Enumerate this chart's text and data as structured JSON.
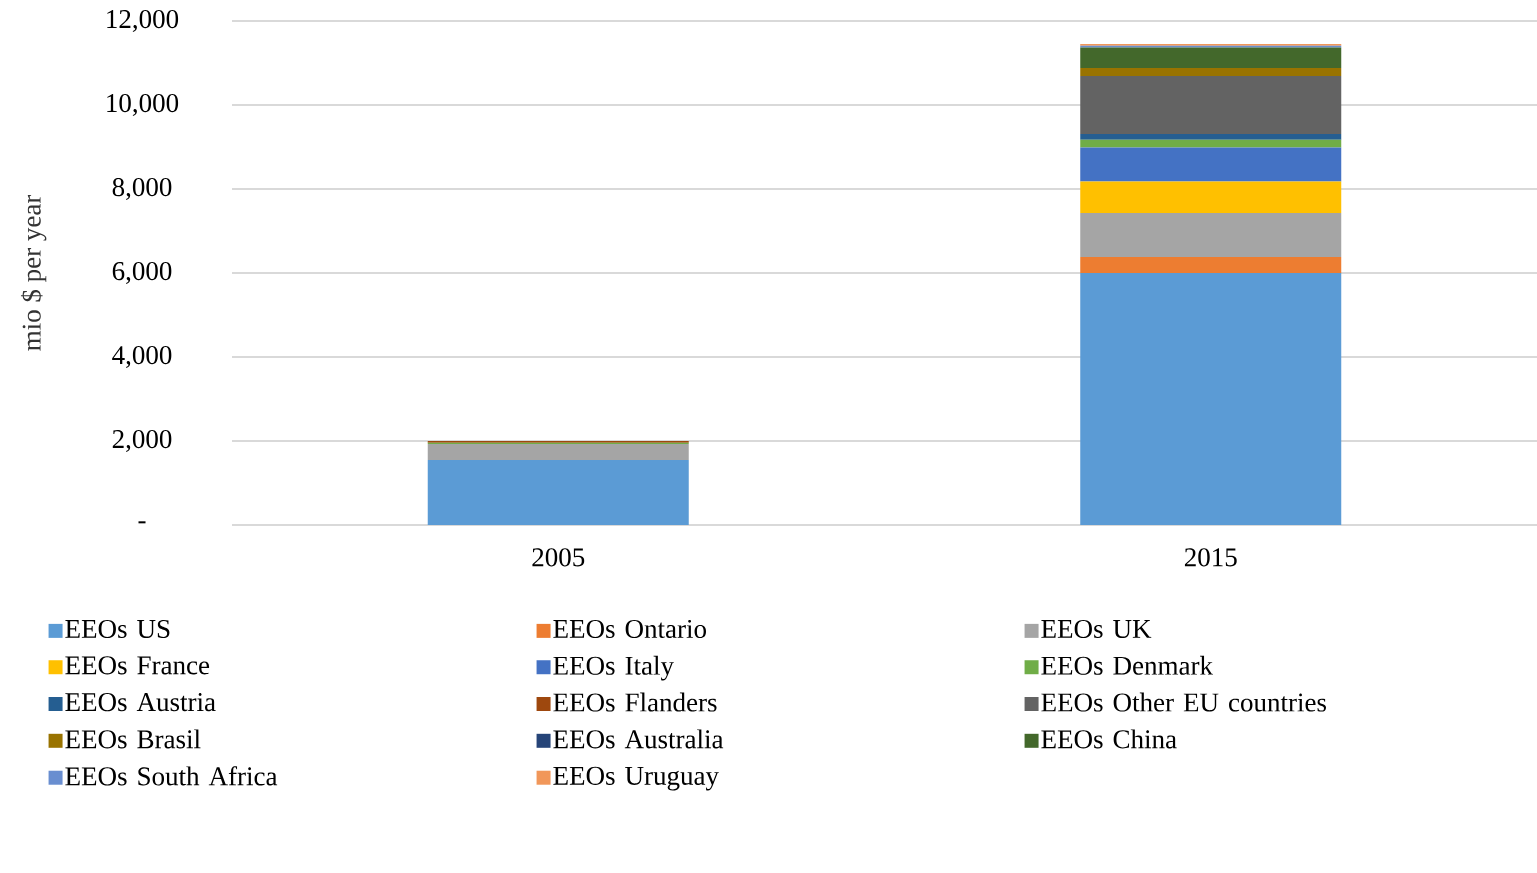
{
  "chart_data": {
    "type": "bar",
    "stacked": true,
    "ylabel": "mio $ per year",
    "categories": [
      "2005",
      "2015"
    ],
    "series": [
      {
        "name": "EEOs US",
        "color": "#5b9bd5",
        "values": [
          1550,
          6000
        ]
      },
      {
        "name": "EEOs Ontario",
        "color": "#ed7d31",
        "values": [
          0,
          380
        ]
      },
      {
        "name": "EEOs UK",
        "color": "#a5a5a5",
        "values": [
          380,
          1050
        ]
      },
      {
        "name": "EEOs France",
        "color": "#ffc000",
        "values": [
          0,
          750
        ]
      },
      {
        "name": "EEOs Italy",
        "color": "#4472c4",
        "values": [
          0,
          810
        ]
      },
      {
        "name": "EEOs Denmark",
        "color": "#70ad47",
        "values": [
          30,
          180
        ]
      },
      {
        "name": "EEOs Austria",
        "color": "#255e91",
        "values": [
          0,
          140
        ]
      },
      {
        "name": "EEOs Flanders",
        "color": "#9e480e",
        "values": [
          40,
          0
        ]
      },
      {
        "name": "EEOs Other EU countries",
        "color": "#636363",
        "values": [
          0,
          1380
        ]
      },
      {
        "name": "EEOs Brasil",
        "color": "#997300",
        "values": [
          0,
          190
        ]
      },
      {
        "name": "EEOs Australia",
        "color": "#264478",
        "values": [
          0,
          0
        ]
      },
      {
        "name": "EEOs China",
        "color": "#43682b",
        "values": [
          0,
          490
        ]
      },
      {
        "name": "EEOs South Africa",
        "color": "#698ed0",
        "values": [
          0,
          40
        ]
      },
      {
        "name": "EEOs Uruguay",
        "color": "#f1975a",
        "values": [
          0,
          40
        ]
      }
    ],
    "ylim": [
      0,
      12000
    ],
    "yticks": [
      {
        "value": 0,
        "label": "-"
      },
      {
        "value": 2000,
        "label": "2,000"
      },
      {
        "value": 4000,
        "label": "4,000"
      },
      {
        "value": 6000,
        "label": "6,000"
      },
      {
        "value": 8000,
        "label": "8,000"
      },
      {
        "value": 10000,
        "label": "10,000"
      },
      {
        "value": 12000,
        "label": "12,000"
      }
    ],
    "grid": "y",
    "legend": "bottom"
  }
}
